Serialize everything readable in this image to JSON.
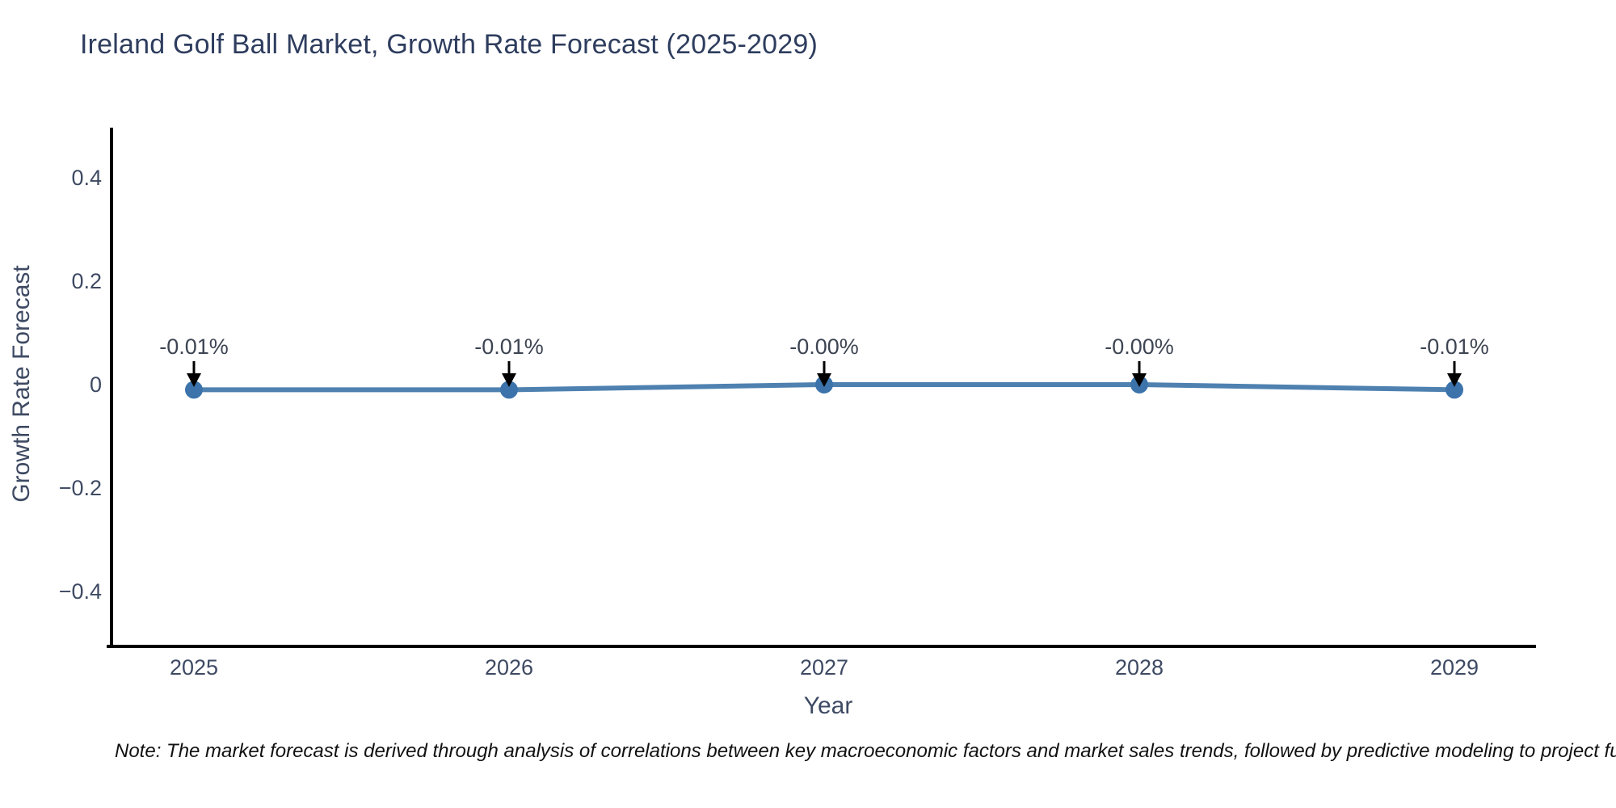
{
  "figure": {
    "note": "Note: The market forecast is derived through analysis of correlations between key macroeconomic factors and market sales trends, followed by predictive modeling to project future sales."
  },
  "chart_data": {
    "type": "line",
    "title": "Ireland Golf Ball Market, Growth Rate Forecast (2025-2029)",
    "xlabel": "Year",
    "ylabel": "Growth Rate Forecast",
    "categories": [
      "2025",
      "2026",
      "2027",
      "2028",
      "2029"
    ],
    "series": [
      {
        "name": "Growth Rate Forecast",
        "values": [
          -0.01,
          -0.01,
          0.0,
          0.0,
          -0.01
        ],
        "point_labels": [
          "-0.01%",
          "-0.01%",
          "-0.00%",
          "-0.00%",
          "-0.01%"
        ]
      }
    ],
    "ylim": [
      -0.5,
      0.5
    ],
    "yticks": [
      0.4,
      0.2,
      0,
      -0.2,
      -0.4
    ],
    "ytick_labels": [
      "0.4",
      "0.2",
      "0",
      "−0.2",
      "−0.4"
    ],
    "grid": false,
    "legend": false,
    "annotations_style": "down-arrow-to-point",
    "colors": {
      "line": "#4e81b0",
      "marker": "#3c73ab",
      "spine": "#000000",
      "title": "#2e3d5e",
      "tick_label": "#3e4a63",
      "annotation_text": "#3d4452",
      "arrow": "#000000",
      "note": "#111111"
    }
  }
}
